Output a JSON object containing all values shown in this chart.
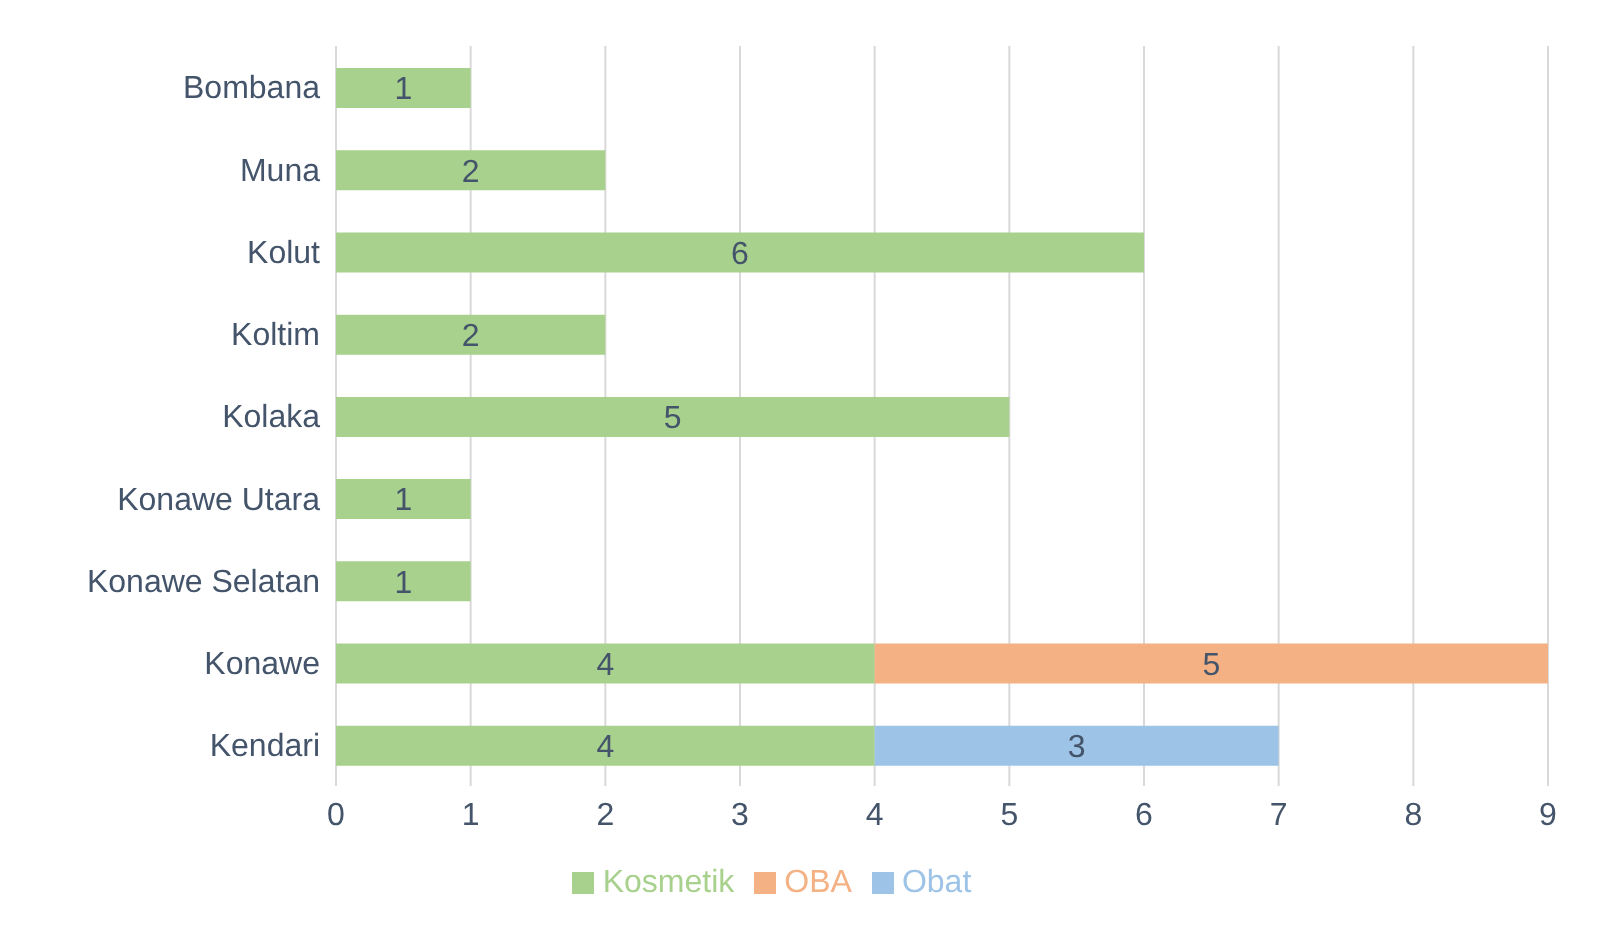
{
  "chart_data": {
    "type": "bar",
    "orientation": "horizontal",
    "stacked": true,
    "categories": [
      "Bombana",
      "Muna",
      "Kolut",
      "Koltim",
      "Kolaka",
      "Konawe Utara",
      "Konawe Selatan",
      "Konawe",
      "Kendari"
    ],
    "series": [
      {
        "name": "Kosmetik",
        "color": "#a9d18e",
        "values": [
          1,
          2,
          6,
          2,
          5,
          1,
          1,
          4,
          4
        ]
      },
      {
        "name": "OBA",
        "color": "#f4b183",
        "values": [
          null,
          null,
          null,
          null,
          null,
          null,
          null,
          5,
          null
        ]
      },
      {
        "name": "Obat",
        "color": "#9dc3e6",
        "values": [
          null,
          null,
          null,
          null,
          null,
          null,
          null,
          null,
          3
        ]
      }
    ],
    "xlim": [
      0,
      9
    ],
    "xticks": [
      0,
      1,
      2,
      3,
      4,
      5,
      6,
      7,
      8,
      9
    ],
    "grid": "x",
    "legend": "bottom",
    "data_labels": true
  }
}
